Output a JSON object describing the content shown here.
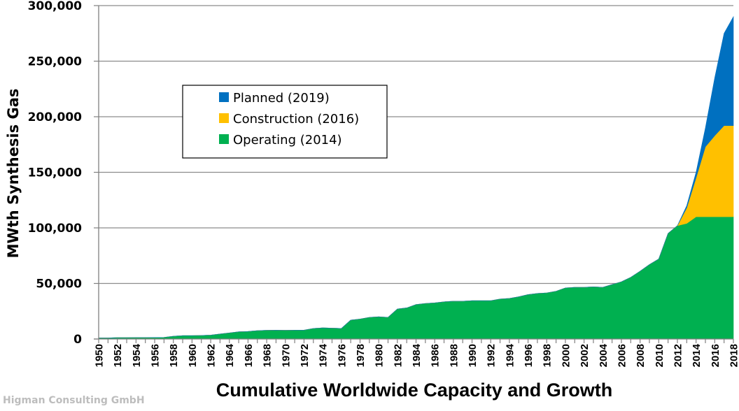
{
  "chart_data": {
    "type": "area",
    "stacked": true,
    "title": "",
    "xlabel": "Cumulative Worldwide Capacity and Growth",
    "ylabel": "MWth Synthesis Gas",
    "ylim": [
      0,
      300000
    ],
    "xlim": [
      1950,
      2018
    ],
    "yticks": [
      0,
      50000,
      100000,
      150000,
      200000,
      250000,
      300000
    ],
    "ytick_labels": [
      "0",
      "50,000",
      "100,000",
      "150,000",
      "200,000",
      "250,000",
      "300,000"
    ],
    "xtick_labels": [
      "1950",
      "1952",
      "1954",
      "1956",
      "1958",
      "1960",
      "1962",
      "1964",
      "1966",
      "1968",
      "1970",
      "1972",
      "1974",
      "1976",
      "1978",
      "1980",
      "1982",
      "1984",
      "1986",
      "1988",
      "1990",
      "1992",
      "1994",
      "1996",
      "1998",
      "2000",
      "2002",
      "2004",
      "2006",
      "2008",
      "2010",
      "2012",
      "2014",
      "2016",
      "2018"
    ],
    "grid": "horizontal",
    "legend_position": "upper-left",
    "x": [
      1950,
      1951,
      1952,
      1953,
      1954,
      1955,
      1956,
      1957,
      1958,
      1959,
      1960,
      1961,
      1962,
      1963,
      1964,
      1965,
      1966,
      1967,
      1968,
      1969,
      1970,
      1971,
      1972,
      1973,
      1974,
      1975,
      1976,
      1977,
      1978,
      1979,
      1980,
      1981,
      1982,
      1983,
      1984,
      1985,
      1986,
      1987,
      1988,
      1989,
      1990,
      1991,
      1992,
      1993,
      1994,
      1995,
      1996,
      1997,
      1998,
      1999,
      2000,
      2001,
      2002,
      2003,
      2004,
      2005,
      2006,
      2007,
      2008,
      2009,
      2010,
      2011,
      2012,
      2013,
      2014,
      2015,
      2016,
      2017,
      2018
    ],
    "series": [
      {
        "name": "Operating (2014)",
        "color": "#00b050",
        "values": [
          1000,
          1000,
          1200,
          1200,
          1300,
          1300,
          1400,
          1500,
          2500,
          3000,
          3000,
          3200,
          3500,
          4500,
          5500,
          6500,
          6800,
          7500,
          7800,
          8000,
          7800,
          8000,
          8000,
          9500,
          10000,
          9800,
          9500,
          17000,
          18000,
          19500,
          20000,
          19500,
          27000,
          28000,
          31000,
          32000,
          32500,
          33500,
          34000,
          34000,
          34500,
          34500,
          34500,
          36000,
          36500,
          38000,
          40000,
          41000,
          41500,
          43000,
          46000,
          46500,
          46500,
          47000,
          46500,
          49000,
          51500,
          55500,
          61000,
          67000,
          72000,
          95000,
          102000,
          104000,
          110000,
          110000,
          110000,
          110000,
          110000
        ]
      },
      {
        "name": "Construction (2016)",
        "color": "#ffc000",
        "values": [
          0,
          0,
          0,
          0,
          0,
          0,
          0,
          0,
          0,
          0,
          0,
          0,
          0,
          0,
          0,
          0,
          0,
          0,
          0,
          0,
          0,
          0,
          0,
          0,
          0,
          0,
          0,
          0,
          0,
          0,
          0,
          0,
          0,
          0,
          0,
          0,
          0,
          0,
          0,
          0,
          0,
          0,
          0,
          0,
          0,
          0,
          0,
          0,
          0,
          0,
          0,
          0,
          0,
          0,
          0,
          0,
          0,
          0,
          0,
          0,
          0,
          0,
          0,
          14000,
          35000,
          63000,
          73000,
          82000,
          82000
        ]
      },
      {
        "name": "Planned (2019)",
        "color": "#0070c0",
        "values": [
          0,
          0,
          0,
          0,
          0,
          0,
          0,
          0,
          0,
          0,
          0,
          0,
          0,
          0,
          0,
          0,
          0,
          0,
          0,
          0,
          0,
          0,
          0,
          0,
          0,
          0,
          0,
          0,
          0,
          0,
          0,
          0,
          0,
          0,
          0,
          0,
          0,
          0,
          0,
          0,
          0,
          0,
          0,
          0,
          0,
          0,
          0,
          0,
          0,
          0,
          0,
          0,
          0,
          0,
          0,
          0,
          0,
          0,
          0,
          0,
          0,
          0,
          0,
          2000,
          5000,
          17000,
          52000,
          83000,
          98000
        ]
      }
    ],
    "legend": [
      "Planned (2019)",
      "Construction (2016)",
      "Operating (2014)"
    ]
  },
  "credit": "Higman Consulting GmbH"
}
